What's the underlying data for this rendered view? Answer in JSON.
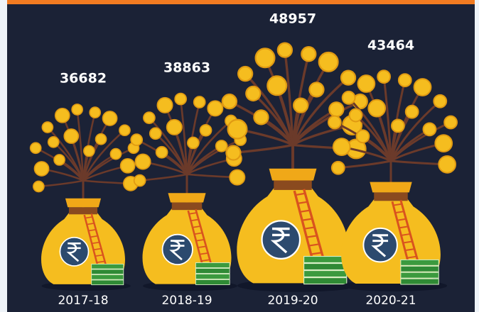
{
  "chart_data": {
    "type": "pictorial",
    "categories": [
      "2017-18",
      "2018-19",
      "2019-20",
      "2020-21"
    ],
    "values": [
      36682,
      38863,
      48957,
      43464
    ],
    "color": "#f5bd1f"
  }
}
